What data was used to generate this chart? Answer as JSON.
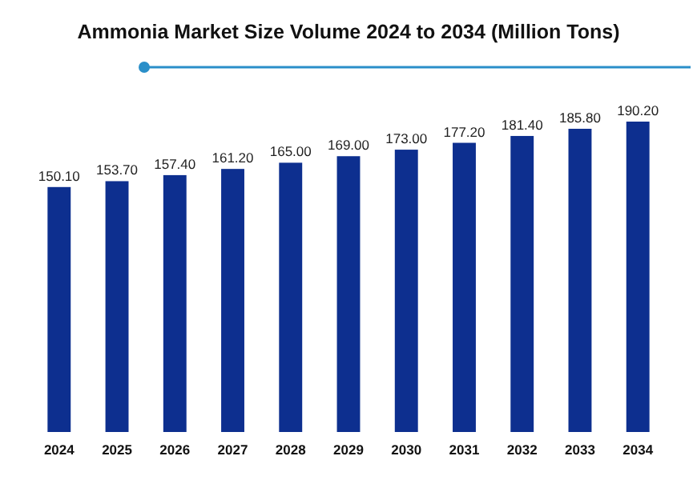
{
  "chart_data": {
    "type": "bar",
    "title": "Ammonia Market Size Volume 2024 to 2034 (Million Tons)",
    "categories": [
      "2024",
      "2025",
      "2026",
      "2027",
      "2028",
      "2029",
      "2030",
      "2031",
      "2032",
      "2033",
      "2034"
    ],
    "values": [
      150.1,
      153.7,
      157.4,
      161.2,
      165.0,
      169.0,
      173.0,
      177.2,
      181.4,
      185.8,
      190.2
    ],
    "value_labels": [
      "150.10",
      "153.70",
      "157.40",
      "161.20",
      "165.00",
      "169.00",
      "173.00",
      "177.20",
      "181.40",
      "185.80",
      "190.20"
    ],
    "color": "#0d2f8f",
    "tick_labels": "x"
  }
}
